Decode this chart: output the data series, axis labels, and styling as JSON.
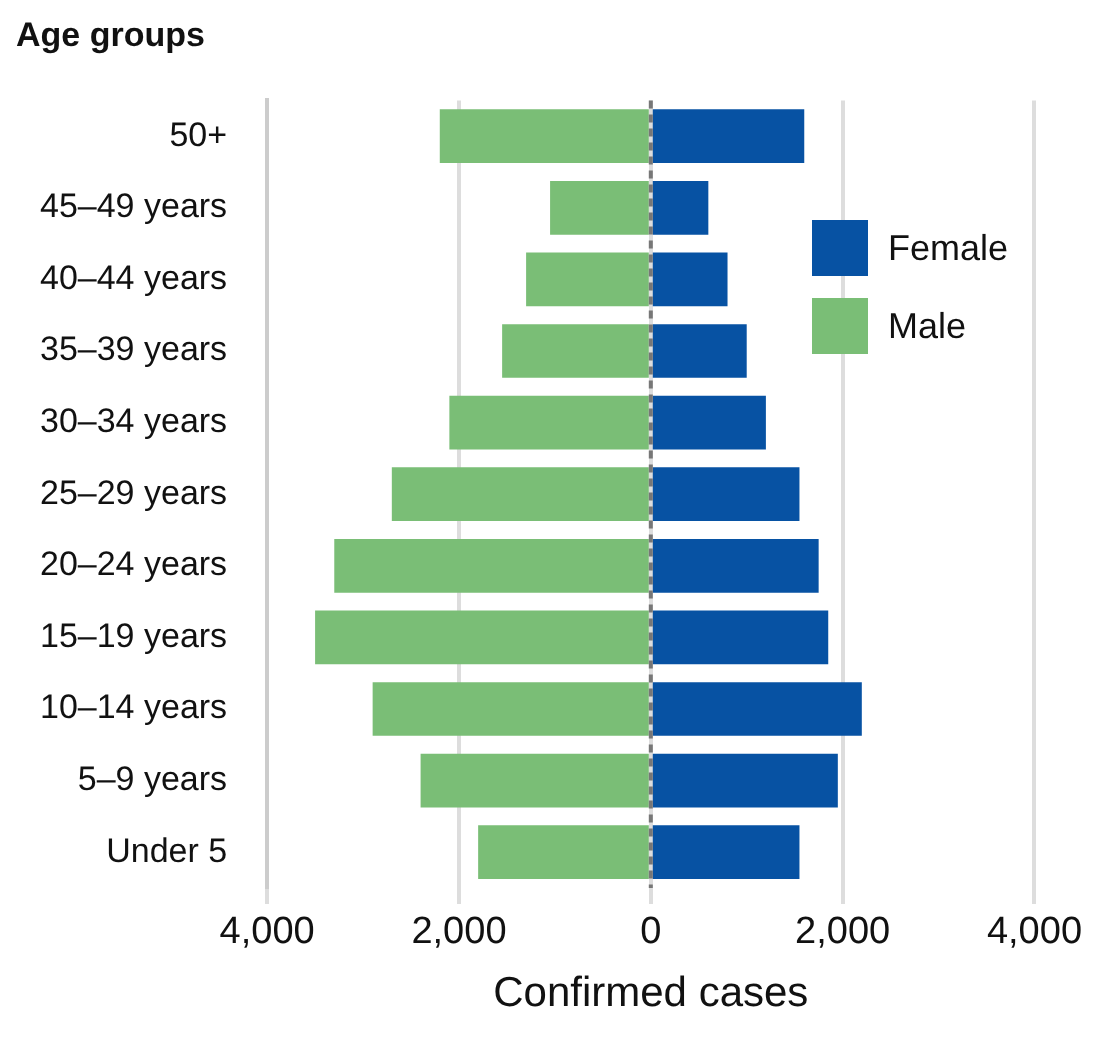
{
  "chart_data": {
    "type": "bar",
    "orientation": "horizontal",
    "stacked": true,
    "title": "Age groups",
    "xlabel": "Confirmed cases",
    "categories": [
      "50+",
      "45–49 years",
      "40–44 years",
      "35–39 years",
      "30–34 years",
      "25–29 years",
      "20–24 years",
      "15–19 years",
      "10–14 years",
      "5–9 years",
      "Under 5"
    ],
    "series": [
      {
        "name": "Female",
        "color": "#0752a3",
        "values": [
          1600,
          600,
          800,
          1000,
          1200,
          1550,
          1750,
          1850,
          2200,
          1950,
          1550
        ]
      },
      {
        "name": "Male",
        "color": "#7abe76",
        "values": [
          -2200,
          -1050,
          -1300,
          -1550,
          -2100,
          -2700,
          -3300,
          -3500,
          -2900,
          -2400,
          -1800
        ]
      }
    ],
    "xlim": [
      -4000,
      4000
    ],
    "xticks": [
      {
        "value": -4000,
        "label": "4,000"
      },
      {
        "value": -2000,
        "label": "2,000"
      },
      0,
      {
        "value": 2000,
        "label": "2,000"
      },
      {
        "value": 4000,
        "label": "4,000"
      }
    ],
    "ref_lines": [
      {
        "axis": "x",
        "value": 0,
        "color": "#777777",
        "line_style": "dashed"
      }
    ],
    "grid": "x",
    "legend": "top right"
  }
}
